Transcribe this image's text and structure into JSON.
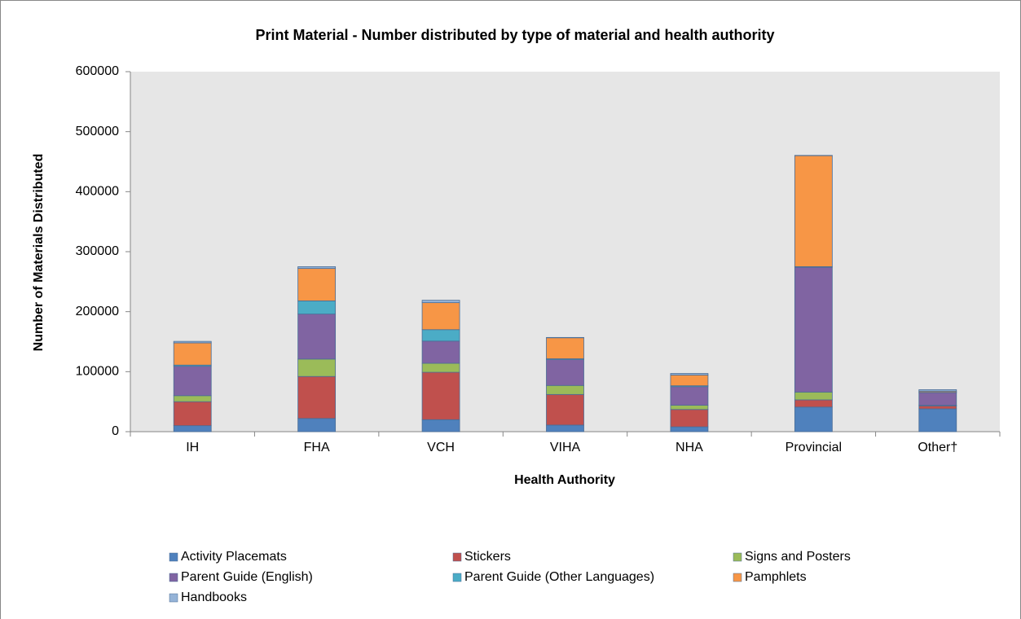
{
  "chart_data": {
    "type": "stacked_bar",
    "title": "Print Material - Number distributed by type of material and health authority",
    "x_label": "Health Authority",
    "y_label": "Number of Materials Distributed",
    "categories": [
      "IH",
      "FHA",
      "VCH",
      "VIHA",
      "NHA",
      "Provincial",
      "Other†"
    ],
    "series": [
      {
        "name": "Activity Placemats",
        "color": "#4f81bd",
        "values": [
          10000,
          22000,
          20000,
          11000,
          8000,
          41000,
          38000
        ]
      },
      {
        "name": "Stickers",
        "color": "#c0504d",
        "values": [
          40000,
          70000,
          79000,
          51000,
          29000,
          12000,
          5000
        ]
      },
      {
        "name": "Signs and Posters",
        "color": "#9bbb59",
        "values": [
          10000,
          29000,
          15000,
          15000,
          7000,
          13000,
          1000
        ]
      },
      {
        "name": "Parent Guide (English)",
        "color": "#8064a2",
        "values": [
          49000,
          75000,
          37000,
          43000,
          31000,
          208000,
          21000
        ]
      },
      {
        "name": "Parent Guide (Other Languages)",
        "color": "#4bacc6",
        "values": [
          2000,
          22000,
          19000,
          1500,
          1500,
          1000,
          500
        ]
      },
      {
        "name": "Pamphlets",
        "color": "#f79646",
        "values": [
          37000,
          54000,
          45000,
          35000,
          18000,
          185000,
          2000
        ]
      },
      {
        "name": "Handbooks",
        "color": "#95b3d7",
        "values": [
          2500,
          3000,
          4000,
          500,
          2500,
          500,
          2500
        ]
      }
    ],
    "ylim": [
      0,
      600000
    ],
    "yticks": [
      0,
      100000,
      200000,
      300000,
      400000,
      500000,
      600000
    ],
    "legend": "bottom"
  }
}
